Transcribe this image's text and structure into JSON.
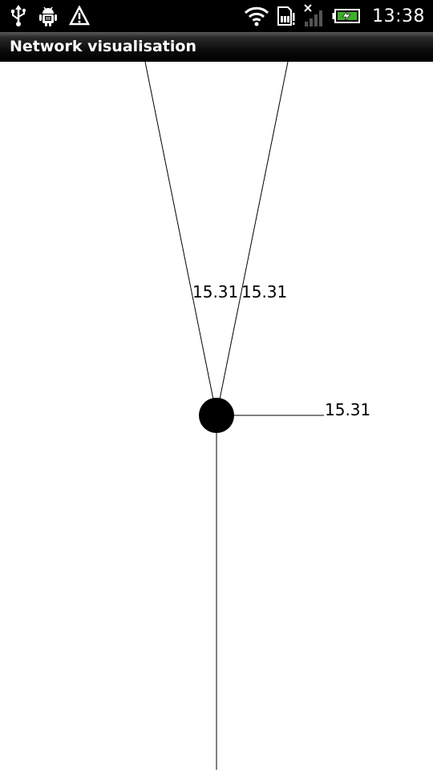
{
  "status_bar": {
    "time": "13:38",
    "icons": [
      "usb-icon",
      "android-debug-icon",
      "warning-icon",
      "wifi-icon",
      "sd-card-icon",
      "signal-icon",
      "battery-charging-icon"
    ]
  },
  "app_bar": {
    "title": "Network visualisation"
  },
  "network": {
    "node": "central-node",
    "edges": [
      {
        "name": "edge-upper-left",
        "weight": "15.31"
      },
      {
        "name": "edge-upper-right",
        "weight": "15.31"
      },
      {
        "name": "edge-right",
        "weight": "15.31"
      },
      {
        "name": "edge-down",
        "weight": ""
      }
    ]
  }
}
